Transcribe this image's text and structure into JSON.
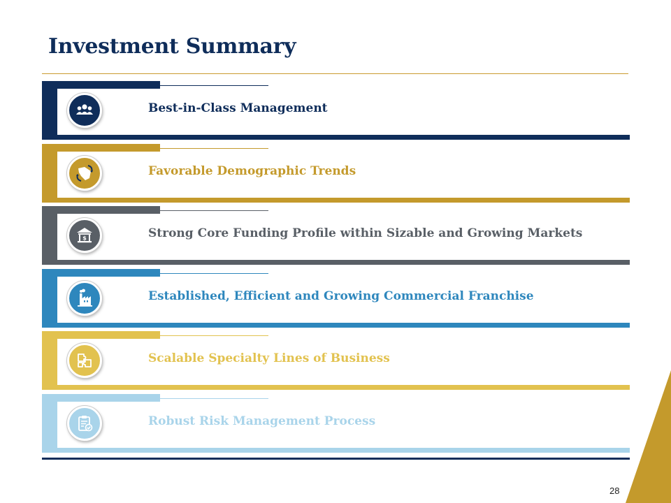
{
  "slide": {
    "title": "Investment Summary",
    "page_number": "28"
  },
  "colors": {
    "navy": "#0f2d5a",
    "gold": "#c49a2c",
    "gray": "#595f66",
    "blue": "#2e87bd",
    "yellow": "#e2c24f",
    "light_blue": "#a9d4ea",
    "rule": "#c99a2e"
  },
  "items": [
    {
      "label": "Best-in-Class Management",
      "icon": "people-group-icon"
    },
    {
      "label": "Favorable Demographic Trends",
      "icon": "state-map-arrows-icon"
    },
    {
      "label": "Strong Core Funding Profile within Sizable and Growing Markets",
      "icon": "bank-building-icon"
    },
    {
      "label": "Established, Efficient and Growing Commercial Franchise",
      "icon": "factory-icon"
    },
    {
      "label": "Scalable Specialty Lines of Business",
      "icon": "puzzle-pieces-icon"
    },
    {
      "label": "Robust Risk Management Process",
      "icon": "clipboard-check-icon"
    }
  ]
}
